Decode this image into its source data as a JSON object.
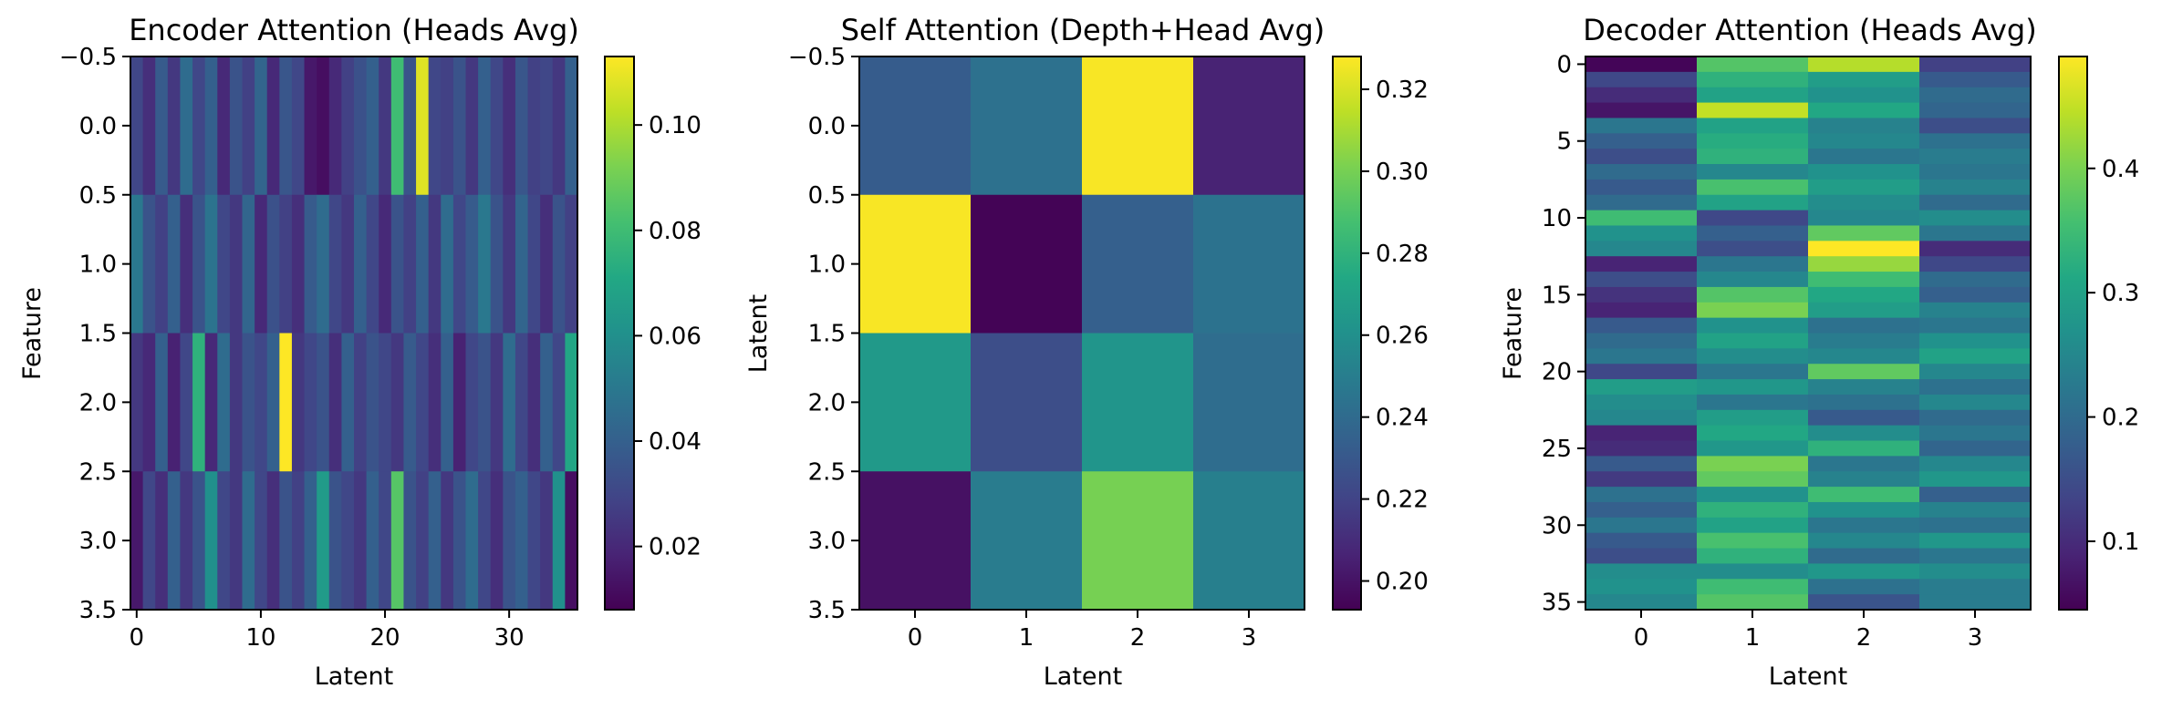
{
  "chart_data": [
    {
      "type": "heatmap",
      "title": "Encoder Attention (Heads Avg)",
      "xlabel": "Latent",
      "ylabel": "Feature",
      "n_cols": 36,
      "n_rows": 4,
      "x_ticks": [
        0,
        10,
        20,
        30
      ],
      "x_tick_labels": [
        "0",
        "10",
        "20",
        "30"
      ],
      "y_ticks": [
        -0.5,
        0.0,
        0.5,
        1.0,
        1.5,
        2.0,
        2.5,
        3.0,
        3.5
      ],
      "y_tick_labels": [
        "−0.5",
        "0.0",
        "0.5",
        "1.0",
        "1.5",
        "2.0",
        "2.5",
        "3.0",
        "3.5"
      ],
      "xlim": [
        -0.5,
        35.5
      ],
      "ylim": [
        3.5,
        -0.5
      ],
      "colormap": "viridis",
      "vmin": 0.008,
      "vmax": 0.113,
      "colorbar_ticks": [
        0.02,
        0.04,
        0.06,
        0.08,
        0.1
      ],
      "colorbar_tick_labels": [
        "0.02",
        "0.04",
        "0.06",
        "0.08",
        "0.10"
      ],
      "values": [
        [
          0.03,
          0.022,
          0.038,
          0.025,
          0.045,
          0.03,
          0.04,
          0.02,
          0.035,
          0.028,
          0.042,
          0.02,
          0.036,
          0.03,
          0.015,
          0.012,
          0.02,
          0.028,
          0.034,
          0.04,
          0.025,
          0.08,
          0.035,
          0.108,
          0.03,
          0.028,
          0.035,
          0.025,
          0.04,
          0.03,
          0.022,
          0.036,
          0.028,
          0.03,
          0.025,
          0.04
        ],
        [
          0.05,
          0.035,
          0.028,
          0.04,
          0.022,
          0.035,
          0.048,
          0.03,
          0.025,
          0.042,
          0.02,
          0.034,
          0.028,
          0.022,
          0.038,
          0.045,
          0.03,
          0.025,
          0.04,
          0.03,
          0.02,
          0.035,
          0.028,
          0.04,
          0.025,
          0.045,
          0.03,
          0.038,
          0.05,
          0.035,
          0.025,
          0.042,
          0.03,
          0.022,
          0.035,
          0.028
        ],
        [
          0.025,
          0.02,
          0.04,
          0.018,
          0.03,
          0.075,
          0.02,
          0.045,
          0.025,
          0.035,
          0.03,
          0.04,
          0.113,
          0.025,
          0.03,
          0.035,
          0.022,
          0.04,
          0.028,
          0.035,
          0.03,
          0.025,
          0.038,
          0.03,
          0.022,
          0.04,
          0.018,
          0.03,
          0.035,
          0.025,
          0.045,
          0.03,
          0.022,
          0.04,
          0.03,
          0.07
        ],
        [
          0.015,
          0.03,
          0.022,
          0.04,
          0.025,
          0.035,
          0.06,
          0.03,
          0.025,
          0.045,
          0.03,
          0.022,
          0.035,
          0.028,
          0.04,
          0.065,
          0.035,
          0.03,
          0.025,
          0.04,
          0.03,
          0.085,
          0.035,
          0.028,
          0.04,
          0.025,
          0.035,
          0.045,
          0.03,
          0.022,
          0.035,
          0.04,
          0.03,
          0.025,
          0.06,
          0.012
        ]
      ]
    },
    {
      "type": "heatmap",
      "title": "Self Attention (Depth+Head Avg)",
      "xlabel": "Latent",
      "ylabel": "Latent",
      "n_cols": 4,
      "n_rows": 4,
      "x_ticks": [
        0,
        1,
        2,
        3
      ],
      "x_tick_labels": [
        "0",
        "1",
        "2",
        "3"
      ],
      "y_ticks": [
        -0.5,
        0.0,
        0.5,
        1.0,
        1.5,
        2.0,
        2.5,
        3.0,
        3.5
      ],
      "y_tick_labels": [
        "−0.5",
        "0.0",
        "0.5",
        "1.0",
        "1.5",
        "2.0",
        "2.5",
        "3.0",
        "3.5"
      ],
      "xlim": [
        -0.5,
        3.5
      ],
      "ylim": [
        3.5,
        -0.5
      ],
      "colormap": "viridis",
      "vmin": 0.193,
      "vmax": 0.328,
      "colorbar_ticks": [
        0.2,
        0.22,
        0.24,
        0.26,
        0.28,
        0.3,
        0.32
      ],
      "colorbar_tick_labels": [
        "0.20",
        "0.22",
        "0.24",
        "0.26",
        "0.28",
        "0.30",
        "0.32"
      ],
      "values": [
        [
          0.232,
          0.243,
          0.327,
          0.206
        ],
        [
          0.327,
          0.194,
          0.234,
          0.244
        ],
        [
          0.265,
          0.225,
          0.263,
          0.241
        ],
        [
          0.199,
          0.249,
          0.3,
          0.251
        ]
      ]
    },
    {
      "type": "heatmap",
      "title": "Decoder Attention (Heads Avg)",
      "xlabel": "Latent",
      "ylabel": "Feature",
      "n_cols": 4,
      "n_rows": 36,
      "x_ticks": [
        0,
        1,
        2,
        3
      ],
      "x_tick_labels": [
        "0",
        "1",
        "2",
        "3"
      ],
      "y_ticks": [
        0,
        5,
        10,
        15,
        20,
        25,
        30,
        35
      ],
      "y_tick_labels": [
        "0",
        "5",
        "10",
        "15",
        "20",
        "25",
        "30",
        "35"
      ],
      "xlim": [
        -0.5,
        3.5
      ],
      "ylim": [
        35.5,
        -0.5
      ],
      "colormap": "viridis",
      "vmin": 0.045,
      "vmax": 0.49,
      "colorbar_ticks": [
        0.1,
        0.2,
        0.3,
        0.4
      ],
      "colorbar_tick_labels": [
        "0.1",
        "0.2",
        "0.3",
        "0.4"
      ],
      "values": [
        [
          0.05,
          0.37,
          0.44,
          0.13
        ],
        [
          0.14,
          0.33,
          0.29,
          0.17
        ],
        [
          0.1,
          0.3,
          0.27,
          0.2
        ],
        [
          0.07,
          0.45,
          0.31,
          0.19
        ],
        [
          0.22,
          0.3,
          0.24,
          0.15
        ],
        [
          0.18,
          0.32,
          0.25,
          0.21
        ],
        [
          0.15,
          0.33,
          0.22,
          0.23
        ],
        [
          0.2,
          0.25,
          0.27,
          0.22
        ],
        [
          0.17,
          0.36,
          0.29,
          0.24
        ],
        [
          0.2,
          0.3,
          0.26,
          0.2
        ],
        [
          0.35,
          0.14,
          0.25,
          0.26
        ],
        [
          0.27,
          0.18,
          0.38,
          0.22
        ],
        [
          0.25,
          0.15,
          0.49,
          0.1
        ],
        [
          0.09,
          0.22,
          0.42,
          0.14
        ],
        [
          0.15,
          0.25,
          0.35,
          0.2
        ],
        [
          0.11,
          0.37,
          0.31,
          0.18
        ],
        [
          0.09,
          0.4,
          0.29,
          0.24
        ],
        [
          0.17,
          0.27,
          0.21,
          0.22
        ],
        [
          0.2,
          0.3,
          0.23,
          0.27
        ],
        [
          0.22,
          0.26,
          0.25,
          0.3
        ],
        [
          0.14,
          0.22,
          0.38,
          0.25
        ],
        [
          0.29,
          0.28,
          0.24,
          0.21
        ],
        [
          0.26,
          0.22,
          0.21,
          0.25
        ],
        [
          0.25,
          0.29,
          0.17,
          0.2
        ],
        [
          0.09,
          0.31,
          0.26,
          0.22
        ],
        [
          0.1,
          0.28,
          0.33,
          0.19
        ],
        [
          0.17,
          0.4,
          0.22,
          0.25
        ],
        [
          0.12,
          0.38,
          0.24,
          0.28
        ],
        [
          0.21,
          0.27,
          0.35,
          0.18
        ],
        [
          0.18,
          0.33,
          0.27,
          0.24
        ],
        [
          0.22,
          0.3,
          0.22,
          0.21
        ],
        [
          0.17,
          0.36,
          0.25,
          0.28
        ],
        [
          0.15,
          0.33,
          0.2,
          0.22
        ],
        [
          0.26,
          0.26,
          0.28,
          0.26
        ],
        [
          0.27,
          0.35,
          0.21,
          0.23
        ],
        [
          0.25,
          0.37,
          0.16,
          0.23
        ]
      ]
    }
  ]
}
